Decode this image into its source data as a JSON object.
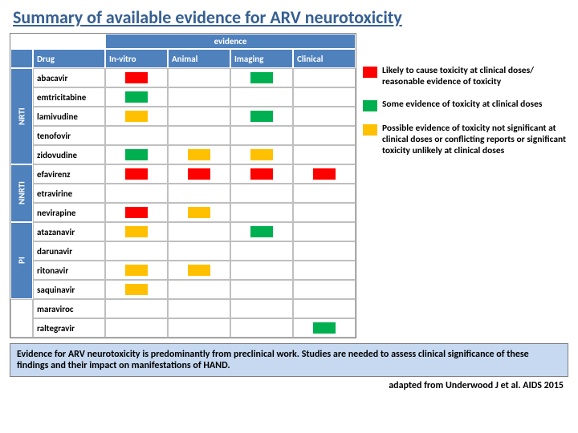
{
  "title": "Summary of available evidence for ARV neurotoxicity",
  "evidence_header": "evidence",
  "col_headers": {
    "drug": "Drug",
    "c1": "In-vitro",
    "c2": "Animal",
    "c3": "Imaging",
    "c4": "Clinical"
  },
  "colors": {
    "red": "#ff0000",
    "green": "#00b050",
    "orange": "#ffc000",
    "hdr": "#4f81bd"
  },
  "groups": [
    {
      "class": "NRTI",
      "drugs": [
        {
          "name": "abacavir",
          "m": [
            "red",
            null,
            "green",
            null
          ]
        },
        {
          "name": "emtricitabine",
          "m": [
            "green",
            null,
            null,
            null
          ]
        },
        {
          "name": "lamivudine",
          "m": [
            "orange",
            null,
            "green",
            null
          ]
        },
        {
          "name": "tenofovir",
          "m": [
            null,
            null,
            null,
            null
          ]
        },
        {
          "name": "zidovudine",
          "m": [
            "green",
            "orange",
            "orange",
            null
          ]
        }
      ]
    },
    {
      "class": "NNRTI",
      "drugs": [
        {
          "name": "efavirenz",
          "m": [
            "red",
            "red",
            "red",
            "red"
          ]
        },
        {
          "name": "etravirine",
          "m": [
            null,
            null,
            null,
            null
          ]
        },
        {
          "name": "nevirapine",
          "m": [
            "red",
            "orange",
            null,
            null
          ]
        }
      ]
    },
    {
      "class": "PI",
      "drugs": [
        {
          "name": "atazanavir",
          "m": [
            "orange",
            null,
            "green",
            null
          ]
        },
        {
          "name": "darunavir",
          "m": [
            null,
            null,
            null,
            null
          ]
        },
        {
          "name": "ritonavir",
          "m": [
            "orange",
            "orange",
            null,
            null
          ]
        },
        {
          "name": "saquinavir",
          "m": [
            "orange",
            null,
            null,
            null
          ]
        }
      ]
    },
    {
      "class": "",
      "drugs": [
        {
          "name": "maraviroc",
          "m": [
            null,
            null,
            null,
            null
          ]
        },
        {
          "name": "raltegravir",
          "m": [
            null,
            null,
            null,
            "green"
          ]
        }
      ]
    }
  ],
  "legend": [
    {
      "color": "red",
      "text": "Likely to cause toxicity at clinical doses/ reasonable evidence of toxicity"
    },
    {
      "color": "green",
      "text": "Some evidence of toxicity at clinical doses"
    },
    {
      "color": "orange",
      "text": "Possible evidence of toxicity not significant at clinical doses or conflicting reports or significant toxicity unlikely at clinical doses"
    }
  ],
  "footer": "Evidence for ARV neurotoxicity is predominantly from preclinical work. Studies are needed to assess clinical significance of these findings and their impact on manifestations of HAND.",
  "citation": "adapted from Underwood J et al. AIDS 2015"
}
